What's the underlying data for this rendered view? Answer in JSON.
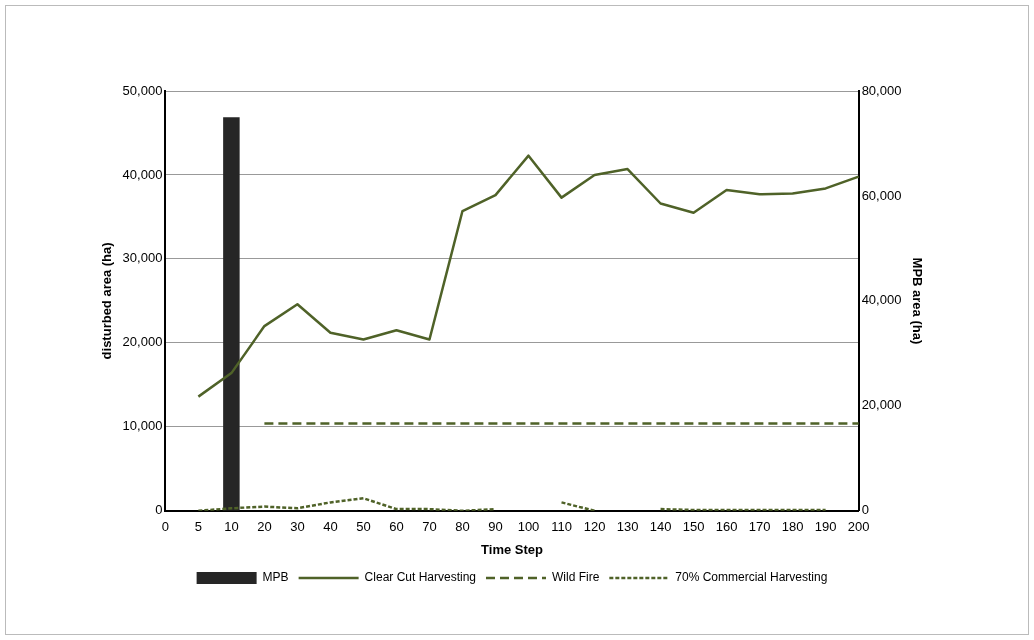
{
  "chart_data": {
    "type": "line",
    "categories": [
      "0",
      "5",
      "10",
      "20",
      "30",
      "40",
      "50",
      "60",
      "70",
      "80",
      "90",
      "100",
      "110",
      "120",
      "130",
      "140",
      "150",
      "160",
      "170",
      "180",
      "190",
      "200"
    ],
    "series": [
      {
        "name": "MPB",
        "type": "bar",
        "axis": "y2",
        "color": "#262626",
        "values": [
          null,
          null,
          75000,
          null,
          null,
          null,
          null,
          null,
          null,
          null,
          null,
          null,
          null,
          null,
          null,
          null,
          null,
          null,
          null,
          null,
          null,
          null
        ]
      },
      {
        "name": "Clear Cut Harvesting",
        "color": "#4f6228",
        "line_style": "solid",
        "values": [
          null,
          13600,
          16400,
          22000,
          24600,
          21200,
          20400,
          21500,
          20400,
          35700,
          37600,
          42300,
          37300,
          40000,
          40700,
          36600,
          35500,
          38200,
          37700,
          37800,
          38400,
          39800
        ]
      },
      {
        "name": "Wild Fire",
        "color": "#4f6228",
        "line_style": "dashed",
        "values": [
          null,
          null,
          null,
          10400,
          10400,
          10400,
          10400,
          10400,
          10400,
          10400,
          10400,
          10400,
          10400,
          10400,
          10400,
          10400,
          10400,
          10400,
          10400,
          10400,
          10400,
          10400
        ]
      },
      {
        "name": "70% Commercial Harvesting",
        "color": "#4f6228",
        "line_style": "dotted",
        "values": [
          null,
          0,
          300,
          500,
          300,
          1000,
          1500,
          200,
          200,
          0,
          200,
          null,
          1000,
          0,
          null,
          200,
          100,
          100,
          100,
          100,
          100,
          null
        ]
      }
    ],
    "xlabel": "Time Step",
    "ylabel": "disturbed area (ha)",
    "y2label": "MPB area (ha)",
    "ylim": [
      0,
      50000
    ],
    "yticks": [
      {
        "value": 0,
        "label": "0"
      },
      {
        "value": 10000,
        "label": "10,000"
      },
      {
        "value": 20000,
        "label": "20,000"
      },
      {
        "value": 30000,
        "label": "30,000"
      },
      {
        "value": 40000,
        "label": "40,000"
      },
      {
        "value": 50000,
        "label": "50,000"
      }
    ],
    "y2lim": [
      0,
      80000
    ],
    "y2ticks": [
      {
        "value": 0,
        "label": "0"
      },
      {
        "value": 20000,
        "label": "20,000"
      },
      {
        "value": 40000,
        "label": "40,000"
      },
      {
        "value": 60000,
        "label": "60,000"
      },
      {
        "value": 80000,
        "label": "80,000"
      }
    ],
    "grid": "y",
    "legend": "bottom",
    "marker": "none"
  }
}
